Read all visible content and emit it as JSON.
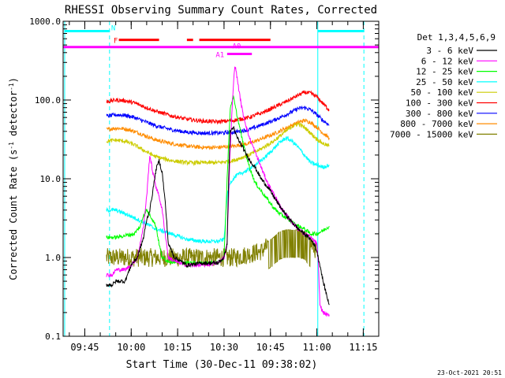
{
  "chart_data": {
    "type": "line",
    "title": "RHESSI Observing Summary Count Rates, Corrected",
    "xlabel": "Start Time (30-Dec-11 09:38:02)",
    "ylabel": "Corrected Count Rate (s⁻¹ detector⁻¹)",
    "ylabel_parts": [
      "Corrected Count Rate (s",
      "-1",
      " detector",
      "-1",
      ")"
    ],
    "x_units": "minutes after 09:38:02 UT",
    "xlim": [
      0,
      102
    ],
    "ylim": [
      0.1,
      1000
    ],
    "yscale": "log",
    "x_ticks": [
      7,
      22,
      37,
      52,
      67,
      82,
      97
    ],
    "x_tick_labels": [
      "09:45",
      "10:00",
      "10:15",
      "10:30",
      "10:45",
      "11:00",
      "11:15"
    ],
    "y_ticks": [
      0.1,
      1,
      10,
      100,
      1000
    ],
    "y_tick_labels": [
      "0.1",
      "1.0",
      "10.0",
      "100.0",
      "1000.0"
    ],
    "legend_title": "Det 1,3,4,5,6,9",
    "legend_position": "right",
    "timestamp": "23-Oct-2021 20:51",
    "series": [
      {
        "name": "3 - 6 keV",
        "color": "#000000",
        "x": [
          14,
          16,
          17,
          20,
          22,
          23,
          24,
          26,
          27,
          28,
          29,
          30,
          31,
          32,
          33,
          34,
          36,
          40,
          45,
          50,
          52,
          53,
          53.5,
          54,
          55,
          56,
          58,
          60,
          62,
          64,
          66,
          68,
          70,
          72,
          74,
          76,
          78,
          80,
          81,
          82,
          83,
          84,
          86
        ],
        "y": [
          0.45,
          0.45,
          0.5,
          0.5,
          0.8,
          0.9,
          1.0,
          1.8,
          3.0,
          4.0,
          7.0,
          13,
          17,
          12,
          5.0,
          1.5,
          1.0,
          0.8,
          0.85,
          0.85,
          1.0,
          1.5,
          10,
          40,
          45,
          35,
          25,
          18,
          14,
          10,
          8.0,
          6.0,
          4.5,
          3.5,
          2.8,
          2.3,
          2.0,
          1.7,
          1.5,
          1.2,
          0.8,
          0.5,
          0.25
        ]
      },
      {
        "name": "6 - 12 keV",
        "color": "#ff00ff",
        "x": [
          14,
          16,
          17,
          20,
          22,
          24,
          26,
          27,
          28,
          29,
          30,
          31,
          32,
          33,
          34,
          36,
          40,
          45,
          50,
          52,
          53,
          54,
          55,
          55.5,
          56,
          57,
          58,
          60,
          62,
          64,
          66,
          68,
          70,
          72,
          74,
          76,
          78,
          80,
          82,
          82.5,
          83,
          84,
          86
        ],
        "y": [
          0.6,
          0.6,
          0.7,
          0.7,
          0.8,
          1.0,
          2.5,
          6.0,
          20,
          12,
          8.0,
          6.0,
          4.0,
          2.0,
          1.0,
          0.9,
          0.8,
          0.8,
          0.85,
          1.0,
          1.5,
          25,
          150,
          280,
          220,
          120,
          70,
          35,
          22,
          14,
          9.0,
          6.5,
          4.5,
          3.5,
          2.8,
          2.3,
          2.0,
          1.8,
          1.5,
          0.8,
          0.25,
          0.2,
          0.18
        ]
      },
      {
        "name": "12 - 25 keV",
        "color": "#00ff00",
        "x": [
          14,
          17,
          20,
          23,
          25,
          26,
          27,
          28,
          29,
          30,
          31,
          32,
          34,
          40,
          45,
          50,
          52,
          53,
          54,
          55,
          56,
          58,
          60,
          62,
          64,
          66,
          68,
          70,
          72,
          74,
          76,
          78,
          80,
          82,
          84,
          86
        ],
        "y": [
          1.8,
          1.8,
          1.9,
          2.0,
          2.5,
          3.5,
          4.0,
          3.5,
          3.0,
          2.5,
          1.5,
          1.0,
          0.9,
          0.85,
          0.85,
          0.85,
          1.0,
          10,
          80,
          110,
          70,
          30,
          15,
          9.0,
          7.0,
          5.5,
          4.3,
          3.6,
          3.2,
          2.8,
          2.5,
          2.3,
          2.0,
          2.0,
          2.2,
          2.5
        ]
      },
      {
        "name": "25 - 50 keV",
        "color": "#00ffff",
        "x": [
          14,
          17,
          20,
          23,
          26,
          30,
          35,
          40,
          45,
          50,
          52,
          53,
          54,
          56,
          58,
          60,
          62,
          64,
          66,
          68,
          70,
          72,
          74,
          76,
          78,
          80,
          82,
          84,
          86
        ],
        "y": [
          4.0,
          4.0,
          3.6,
          3.2,
          2.8,
          2.3,
          2.0,
          1.7,
          1.6,
          1.6,
          1.7,
          6.0,
          9.0,
          11,
          12,
          13,
          15,
          17,
          20,
          24,
          29,
          33,
          30,
          25,
          20,
          16,
          15,
          14,
          15
        ]
      },
      {
        "name": "50 - 100 keV",
        "color": "#cccc00",
        "x": [
          14,
          17,
          20,
          23,
          26,
          30,
          35,
          40,
          45,
          50,
          55,
          60,
          64,
          68,
          72,
          74,
          76,
          78,
          80,
          82,
          84,
          86
        ],
        "y": [
          30,
          31,
          30,
          27,
          23,
          19,
          17,
          16,
          16,
          16,
          17,
          20,
          24,
          30,
          40,
          46,
          50,
          45,
          38,
          32,
          28,
          26
        ]
      },
      {
        "name": "100 - 300 keV",
        "color": "#ff0000",
        "x": [
          14,
          17,
          20,
          23,
          26,
          30,
          35,
          40,
          45,
          50,
          55,
          60,
          64,
          68,
          72,
          76,
          78,
          80,
          82,
          84,
          86
        ],
        "y": [
          95,
          100,
          98,
          92,
          83,
          72,
          63,
          57,
          54,
          53,
          55,
          60,
          68,
          80,
          95,
          115,
          125,
          122,
          110,
          90,
          75
        ]
      },
      {
        "name": "300 - 800 keV",
        "color": "#0000ff",
        "x": [
          14,
          17,
          20,
          23,
          26,
          30,
          35,
          40,
          45,
          50,
          55,
          60,
          64,
          68,
          72,
          76,
          78,
          80,
          82,
          84,
          86
        ],
        "y": [
          62,
          65,
          64,
          60,
          54,
          47,
          42,
          39,
          38,
          38,
          39,
          42,
          48,
          55,
          65,
          78,
          80,
          75,
          65,
          55,
          48
        ]
      },
      {
        "name": "800 - 7000 keV",
        "color": "#ff8c00",
        "x": [
          14,
          17,
          20,
          23,
          26,
          30,
          35,
          40,
          45,
          50,
          55,
          60,
          64,
          68,
          72,
          76,
          78,
          80,
          82,
          84,
          86
        ],
        "y": [
          42,
          44,
          43,
          40,
          36,
          31,
          28,
          26,
          25,
          25,
          26,
          28,
          32,
          37,
          44,
          52,
          55,
          52,
          45,
          38,
          33
        ]
      },
      {
        "name": "7000 - 15000 keV",
        "color": "#808000",
        "x": [
          14,
          20,
          26,
          30,
          35,
          40,
          45,
          50,
          52,
          56,
          58,
          60,
          62,
          64,
          66,
          68,
          70,
          72,
          74,
          76,
          78,
          80,
          82
        ],
        "y": [
          1.0,
          1.0,
          1.0,
          1.0,
          1.0,
          1.0,
          1.0,
          1.0,
          1.0,
          1.0,
          1.05,
          1.1,
          1.15,
          1.2,
          1.4,
          1.6,
          1.9,
          2.0,
          2.0,
          2.0,
          1.9,
          1.5,
          1.2
        ]
      }
    ],
    "annotations": {
      "vertical_lines": [
        {
          "x": 0.5,
          "style": "solid",
          "color": "#00ffff"
        },
        {
          "x": 15,
          "style": "dashed",
          "color": "#00ffff"
        },
        {
          "x": 82.3,
          "style": "solid",
          "color": "#00ffff"
        },
        {
          "x": 97.2,
          "style": "dashed",
          "color": "#00ffff"
        }
      ],
      "night_bars": {
        "label": "N",
        "color": "#00ffff",
        "y": 750,
        "spans": [
          [
            0.5,
            15
          ],
          [
            82.3,
            97.2
          ]
        ]
      },
      "flare_bars": {
        "label": "F",
        "color": "#ff0000",
        "y": 580,
        "spans": [
          [
            18,
            31
          ],
          [
            40,
            42
          ],
          [
            44,
            67
          ]
        ]
      },
      "saa_line": {
        "color": "#ff00ff",
        "y": 470,
        "spans": [
          [
            0,
            102
          ]
        ]
      },
      "attenuator": {
        "color": "#ff00ff",
        "y": 385,
        "labels": [
          "A1",
          "A0"
        ],
        "spans": [
          [
            53,
            61
          ]
        ]
      }
    }
  }
}
